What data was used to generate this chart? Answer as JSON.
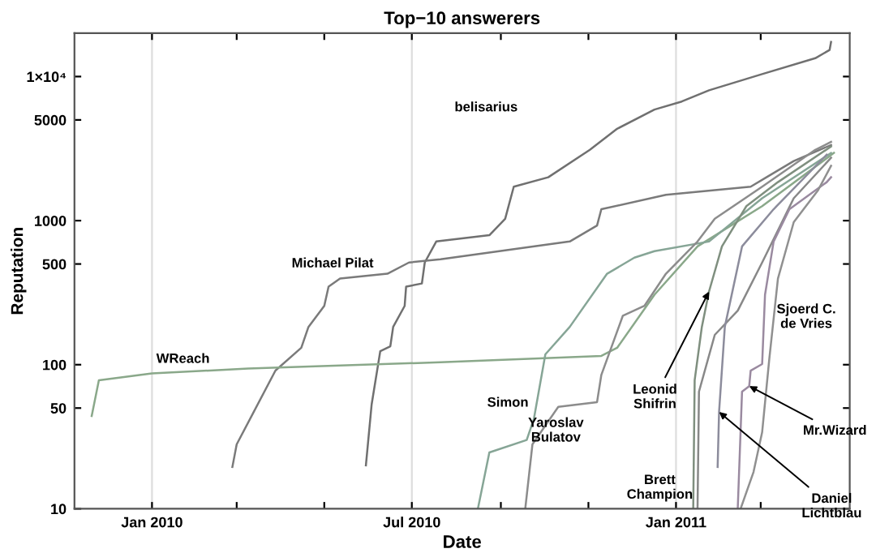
{
  "chart_data": {
    "type": "line",
    "title": "Top−10 answerers",
    "xlabel": "Date",
    "ylabel": "Reputation",
    "log": "y",
    "grid": "x",
    "legend": false,
    "marker": "none",
    "line_style": "solid",
    "xlim": [
      "2009-11-08",
      "2011-05-02"
    ],
    "xticks": [
      {
        "value": "2010-01-01",
        "label": "Jan 2010"
      },
      {
        "value": "2010-03-01",
        "label": null
      },
      {
        "value": "2010-05-01",
        "label": null
      },
      {
        "value": "2010-07-01",
        "label": "Jul 2010"
      },
      {
        "value": "2010-09-01",
        "label": null
      },
      {
        "value": "2010-11-01",
        "label": null
      },
      {
        "value": "2011-01-01",
        "label": "Jan 2011"
      },
      {
        "value": "2011-03-01",
        "label": null
      }
    ],
    "ylim": [
      10,
      20000
    ],
    "yticks": [
      10,
      50,
      100,
      500,
      1000,
      5000,
      {
        "value": 10000,
        "label": "1×10⁴"
      }
    ],
    "series": [
      {
        "color": "#707070",
        "x": [
          "2010-05-30",
          "2010-06-03",
          "2010-06-09",
          "2010-06-16",
          "2010-06-18",
          "2010-06-26",
          "2010-06-27",
          "2010-07-08",
          "2010-07-10",
          "2010-07-18",
          "2010-08-24",
          "2010-09-04",
          "2010-09-10",
          "2010-10-04",
          "2010-11-02",
          "2010-11-21",
          "2010-12-17",
          "2011-01-05",
          "2011-01-24",
          "2011-03-02",
          "2011-04-08",
          "2011-04-18",
          "2011-04-19"
        ],
        "values": [
          20,
          53,
          124,
          134,
          183,
          256,
          348,
          366,
          512,
          716,
          792,
          1030,
          1720,
          2000,
          3100,
          4340,
          5900,
          6710,
          8030,
          10400,
          13400,
          15300,
          17400
        ]
      },
      {
        "color": "#7a7a7a",
        "x": [
          "2010-02-26",
          "2010-03-01",
          "2010-03-28",
          "2010-04-15",
          "2010-04-20",
          "2010-05-01",
          "2010-05-04",
          "2010-05-12",
          "2010-06-14",
          "2010-06-29",
          "2010-07-21",
          "2010-10-19",
          "2010-11-07",
          "2010-11-10",
          "2010-12-25",
          "2011-02-22",
          "2011-03-05",
          "2011-03-24",
          "2011-04-19"
        ],
        "values": [
          19.5,
          28,
          91,
          131,
          183,
          256,
          348,
          396,
          428,
          512,
          539,
          716,
          925,
          1200,
          1510,
          1720,
          2000,
          2590,
          3350
        ]
      },
      {
        "color": "#8aa88a",
        "x": [
          "2009-11-20",
          "2009-11-25",
          "2010-01-01",
          "2010-03-09",
          "2010-07-21",
          "2010-11-10",
          "2010-11-21",
          "2010-12-17",
          "2011-01-16",
          "2011-03-02",
          "2011-04-21"
        ],
        "values": [
          44,
          78,
          87,
          94,
          104,
          115,
          131,
          306,
          662,
          1260,
          2950
        ]
      },
      {
        "color": "#86a596",
        "x": [
          "2010-08-16",
          "2010-08-24",
          "2010-09-19",
          "2010-09-24",
          "2010-10-02",
          "2010-10-19",
          "2010-11-14",
          "2010-12-03",
          "2010-12-17",
          "2011-01-24",
          "2011-03-02",
          "2011-04-19"
        ],
        "values": [
          10,
          24.6,
          30,
          42,
          118,
          183,
          428,
          553,
          614,
          716,
          1430,
          2950
        ]
      },
      {
        "color": "#8c8c8c",
        "x": [
          "2010-09-18",
          "2010-09-23",
          "2010-10-11",
          "2010-11-07",
          "2010-11-10",
          "2010-11-25",
          "2010-12-10",
          "2010-12-25",
          "2011-01-16",
          "2011-01-28",
          "2011-03-02",
          "2011-04-08",
          "2011-04-19"
        ],
        "values": [
          10,
          28,
          51,
          55,
          85,
          219,
          256,
          428,
          716,
          1030,
          1720,
          3100,
          3520
        ]
      },
      {
        "color": "#7f8f7f",
        "x": [
          "2011-01-13",
          "2011-01-14",
          "2011-01-19",
          "2011-01-24",
          "2011-02-02",
          "2011-02-19",
          "2011-03-13",
          "2011-04-19"
        ],
        "values": [
          10,
          78,
          183,
          322,
          662,
          1260,
          1850,
          3270
        ]
      },
      {
        "color": "#888888",
        "x": [
          "2011-01-16",
          "2011-01-17",
          "2011-01-28",
          "2011-02-13",
          "2011-03-02",
          "2011-03-24",
          "2011-04-19"
        ],
        "values": [
          10,
          65,
          161,
          237,
          512,
          1430,
          2730
        ]
      },
      {
        "color": "#8c8c9c",
        "x": [
          "2011-01-30",
          "2011-01-31",
          "2011-02-04",
          "2011-02-16",
          "2011-03-10",
          "2011-04-16"
        ],
        "values": [
          19.5,
          47,
          183,
          662,
          1200,
          2870
        ]
      },
      {
        "color": "#9a8aa0",
        "x": [
          "2011-02-13",
          "2011-02-16",
          "2011-02-21",
          "2011-02-22",
          "2011-03-02",
          "2011-03-04",
          "2011-03-10",
          "2011-03-21",
          "2011-04-16",
          "2011-04-19"
        ],
        "values": [
          10,
          65,
          71,
          91,
          101,
          306,
          716,
          1200,
          1850,
          2000
        ]
      },
      {
        "color": "#909090",
        "x": [
          "2011-02-15",
          "2011-02-24",
          "2011-03-02",
          "2011-03-07",
          "2011-03-13",
          "2011-03-24",
          "2011-04-10",
          "2011-04-19"
        ],
        "values": [
          10,
          18,
          34,
          110,
          396,
          975,
          1630,
          2400
        ]
      }
    ],
    "annotations": [
      "belisarius",
      "Michael Pilat",
      "WReach",
      "Simon",
      "Yaroslav\nBulatov",
      {
        "text": "Leonid\nShifrin",
        "x": "2011-01-24",
        "y": 322
      },
      "Brett\nChampion",
      "Sjoerd C.\nde Vries",
      {
        "text": "Mr.Wizard",
        "x": "2011-02-21",
        "y": 71
      },
      {
        "text": "Daniel\nLichtblau",
        "x": "2011-01-31",
        "y": 47
      }
    ]
  }
}
